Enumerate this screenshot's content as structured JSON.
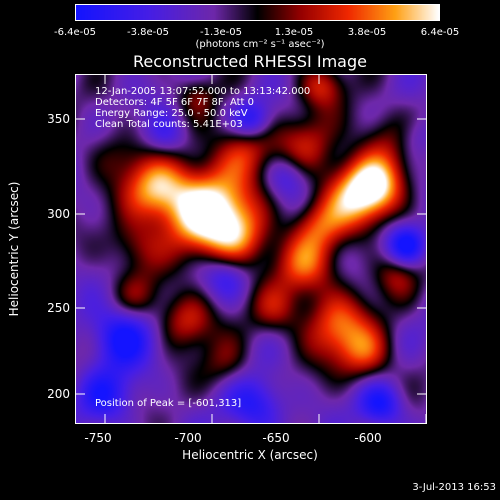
{
  "colorbar": {
    "ticks": [
      "-6.4e-05",
      "-3.8e-05",
      "-1.3e-05",
      "1.3e-05",
      "3.8e-05",
      "6.4e-05"
    ],
    "units": "(photons cm⁻² s⁻¹ asec⁻²)"
  },
  "title": "Reconstructed RHESSI Image",
  "annotations": {
    "time": "12-Jan-2005 13:07:52.000 to 13:13:42.000",
    "detectors": "Detectors: 4F 5F 6F 7F 8F, Att 0",
    "energy": "Energy Range: 25.0 - 50.0 keV",
    "method": "Clean     Total counts: 5.41E+03",
    "peak": "Position of Peak = [-601,313]"
  },
  "axes": {
    "xlabel": "Heliocentric X (arcsec)",
    "ylabel": "Heliocentric Y (arcsec)",
    "xticks": [
      "-750",
      "-700",
      "-650",
      "-600"
    ],
    "yticks": [
      "350",
      "300",
      "250",
      "200"
    ]
  },
  "footer": {
    "date": "3-Jul-2013 16:53"
  }
}
